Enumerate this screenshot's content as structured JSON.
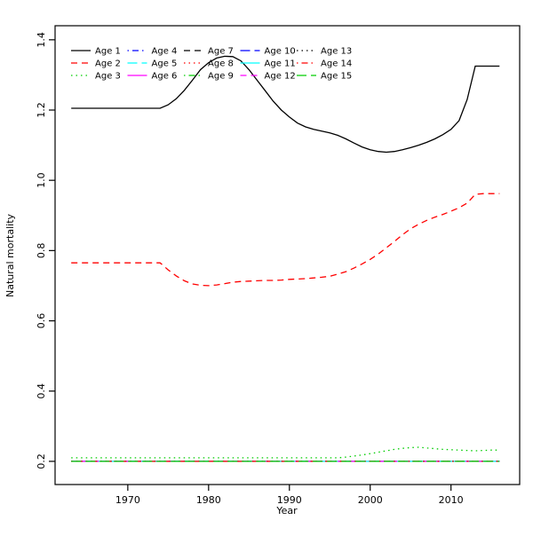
{
  "chart_data": {
    "type": "line",
    "title": "",
    "xlabel": "Year",
    "ylabel": "Natural mortality",
    "xlim": [
      1961,
      2018.5
    ],
    "ylim": [
      0.134,
      1.44
    ],
    "xticks": [
      1970,
      1980,
      1990,
      2000,
      2010
    ],
    "xtick_labels": [
      "1970",
      "1980",
      "1990",
      "2000",
      "2010"
    ],
    "yticks": [
      0.2,
      0.4,
      0.6,
      0.8,
      1.0,
      1.2,
      1.4
    ],
    "ytick_labels": [
      "0.2",
      "0.4",
      "0.6",
      "0.8",
      "1.0",
      "1.2",
      "1.4"
    ],
    "grid": false,
    "legend_position": "top-left",
    "legend_columns": 5,
    "legend_rows": 3,
    "colors": {
      "black": "#000000",
      "red": "#FF0000",
      "green": "#00CD00",
      "blue": "#0000FF",
      "cyan": "#00FFFF",
      "magenta": "#FF00FF"
    },
    "series": [
      {
        "name": "Age 1",
        "color": "#000000",
        "linetype": "solid",
        "x": [
          1963,
          1974,
          1975,
          1976,
          1977,
          1978,
          1979,
          1980,
          1981,
          1982,
          1983,
          1984,
          1985,
          1986,
          1987,
          1988,
          1989,
          1990,
          1991,
          1992,
          1993,
          1994,
          1995,
          1996,
          1997,
          1998,
          1999,
          2000,
          2001,
          2002,
          2003,
          2004,
          2005,
          2006,
          2007,
          2008,
          2009,
          2010,
          2011,
          2012,
          2013,
          2014,
          2015,
          2016
        ],
        "y": [
          1.205,
          1.205,
          1.215,
          1.232,
          1.256,
          1.285,
          1.315,
          1.335,
          1.348,
          1.353,
          1.352,
          1.34,
          1.315,
          1.285,
          1.255,
          1.225,
          1.2,
          1.18,
          1.163,
          1.152,
          1.145,
          1.14,
          1.135,
          1.128,
          1.118,
          1.106,
          1.095,
          1.087,
          1.082,
          1.08,
          1.082,
          1.087,
          1.093,
          1.1,
          1.108,
          1.118,
          1.13,
          1.145,
          1.17,
          1.23,
          1.325,
          1.325,
          1.325,
          1.325
        ]
      },
      {
        "name": "Age 2",
        "color": "#FF0000",
        "linetype": "dashed",
        "x": [
          1963,
          1974,
          1975,
          1976,
          1977,
          1978,
          1979,
          1980,
          1981,
          1982,
          1983,
          1984,
          1985,
          1986,
          1987,
          1988,
          1989,
          1990,
          1991,
          1992,
          1993,
          1994,
          1995,
          1996,
          1997,
          1998,
          1999,
          2000,
          2001,
          2002,
          2003,
          2004,
          2005,
          2006,
          2007,
          2008,
          2009,
          2010,
          2011,
          2012,
          2013,
          2014,
          2015,
          2016
        ],
        "y": [
          0.765,
          0.765,
          0.745,
          0.728,
          0.714,
          0.705,
          0.701,
          0.7,
          0.702,
          0.706,
          0.71,
          0.712,
          0.713,
          0.714,
          0.715,
          0.715,
          0.716,
          0.718,
          0.719,
          0.72,
          0.722,
          0.724,
          0.727,
          0.733,
          0.74,
          0.75,
          0.762,
          0.775,
          0.79,
          0.808,
          0.826,
          0.845,
          0.862,
          0.875,
          0.886,
          0.895,
          0.903,
          0.912,
          0.922,
          0.935,
          0.96,
          0.962,
          0.962,
          0.962
        ]
      },
      {
        "name": "Age 3",
        "color": "#00CD00",
        "linetype": "dotted",
        "x": [
          1963,
          1996,
          1997,
          1998,
          1999,
          2000,
          2001,
          2002,
          2003,
          2004,
          2005,
          2006,
          2007,
          2008,
          2009,
          2010,
          2011,
          2012,
          2013,
          2014,
          2015,
          2016
        ],
        "y": [
          0.21,
          0.21,
          0.212,
          0.215,
          0.218,
          0.222,
          0.226,
          0.23,
          0.234,
          0.237,
          0.239,
          0.24,
          0.238,
          0.236,
          0.234,
          0.233,
          0.232,
          0.231,
          0.23,
          0.231,
          0.232,
          0.232
        ]
      },
      {
        "name": "Age 4",
        "color": "#0000FF",
        "linetype": "dotdash",
        "x": [
          1963,
          2016
        ],
        "y": [
          0.2,
          0.2
        ]
      },
      {
        "name": "Age 5",
        "color": "#00FFFF",
        "linetype": "longdash",
        "x": [
          1963,
          2016
        ],
        "y": [
          0.2,
          0.2
        ]
      },
      {
        "name": "Age 6",
        "color": "#FF00FF",
        "linetype": "solid",
        "x": [
          1963,
          2016
        ],
        "y": [
          0.2,
          0.2
        ]
      },
      {
        "name": "Age 7",
        "color": "#000000",
        "linetype": "dashed",
        "x": [
          1963,
          2016
        ],
        "y": [
          0.2,
          0.2
        ]
      },
      {
        "name": "Age 8",
        "color": "#FF0000",
        "linetype": "dotted",
        "x": [
          1963,
          2016
        ],
        "y": [
          0.2,
          0.2
        ]
      },
      {
        "name": "Age 9",
        "color": "#00CD00",
        "linetype": "dotdash",
        "x": [
          1963,
          2016
        ],
        "y": [
          0.2,
          0.2
        ]
      },
      {
        "name": "Age 10",
        "color": "#0000FF",
        "linetype": "longdash",
        "x": [
          1963,
          2016
        ],
        "y": [
          0.2,
          0.2
        ]
      },
      {
        "name": "Age 11",
        "color": "#00FFFF",
        "linetype": "solid",
        "x": [
          1963,
          2016
        ],
        "y": [
          0.2,
          0.2
        ]
      },
      {
        "name": "Age 12",
        "color": "#FF00FF",
        "linetype": "dashed",
        "x": [
          1963,
          2016
        ],
        "y": [
          0.2,
          0.2
        ]
      },
      {
        "name": "Age 13",
        "color": "#000000",
        "linetype": "dotted",
        "x": [
          1963,
          2016
        ],
        "y": [
          0.2,
          0.2
        ]
      },
      {
        "name": "Age 14",
        "color": "#FF0000",
        "linetype": "dotdash",
        "x": [
          1963,
          2016
        ],
        "y": [
          0.2,
          0.2
        ]
      },
      {
        "name": "Age 15",
        "color": "#00CD00",
        "linetype": "longdash",
        "x": [
          1963,
          2016
        ],
        "y": [
          0.2,
          0.2
        ]
      }
    ]
  }
}
